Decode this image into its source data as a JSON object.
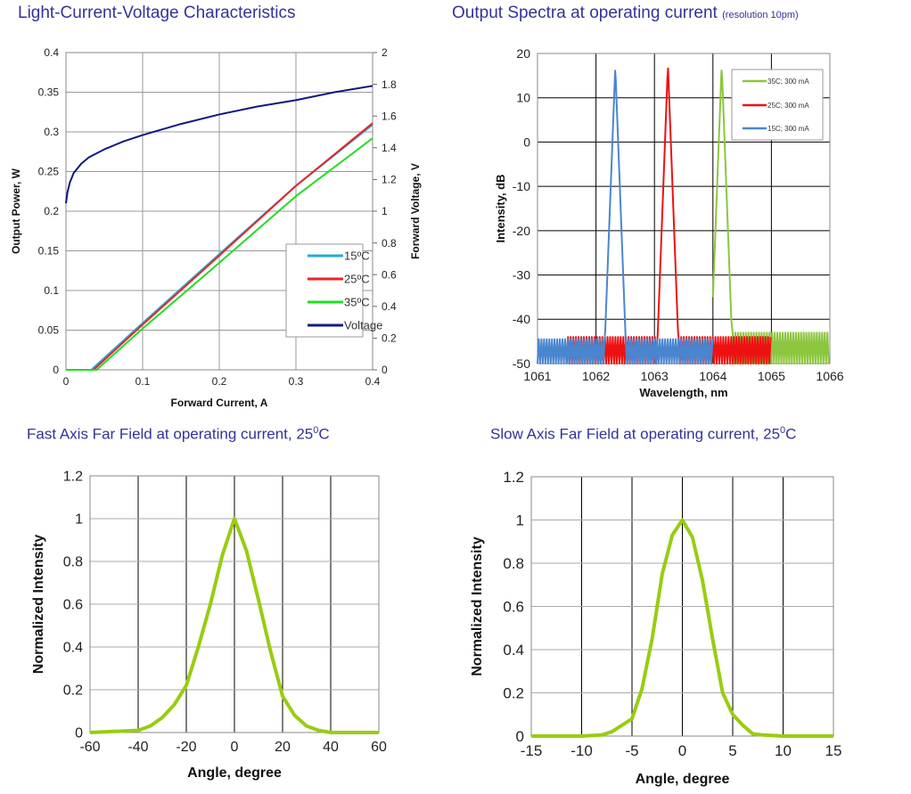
{
  "titles": {
    "liv": "Light-Current-Voltage Characteristics",
    "spectra": "Output Spectra at operating current",
    "spectra_note": "(resolution 10pm)",
    "fast_prefix": "Fast Axis Far Field at operating current, 25",
    "slow_prefix": "Slow Axis Far Field at operating current, 25",
    "deg_sup": "0",
    "unit_c": "C"
  },
  "chart_data": [
    {
      "type": "line",
      "xlabel": "Forward Current, A",
      "ylabel": "Output Power, W",
      "y2label": "Forward Voltage, V",
      "xlim": [
        0,
        0.4
      ],
      "ylim": [
        0,
        0.4
      ],
      "y2lim": [
        0,
        2
      ],
      "xticks": [
        "0",
        "0.1",
        "0.2",
        "0.3",
        "0.4"
      ],
      "yticks": [
        "0",
        "0.05",
        "0.1",
        "0.15",
        "0.2",
        "0.25",
        "0.3",
        "0.35",
        "0.4"
      ],
      "y2ticks": [
        "0",
        "0.2",
        "0.4",
        "0.6",
        "0.8",
        "1",
        "1.2",
        "1.4",
        "1.6",
        "1.8",
        "2"
      ],
      "grid": true,
      "legend": "center-right",
      "series": [
        {
          "name": "15ºC",
          "color": "#22aadd",
          "axis": "left",
          "x": [
            0,
            0.033,
            0.1,
            0.2,
            0.3,
            0.4
          ],
          "y": [
            0,
            0,
            0.059,
            0.146,
            0.232,
            0.309
          ]
        },
        {
          "name": "25ºC",
          "color": "#ee2222",
          "axis": "left",
          "x": [
            0,
            0.036,
            0.1,
            0.2,
            0.3,
            0.4
          ],
          "y": [
            0,
            0,
            0.057,
            0.144,
            0.232,
            0.311
          ]
        },
        {
          "name": "35ºC",
          "color": "#22dd22",
          "axis": "left",
          "x": [
            0,
            0.04,
            0.1,
            0.2,
            0.3,
            0.4
          ],
          "y": [
            0,
            0,
            0.052,
            0.135,
            0.219,
            0.292
          ]
        },
        {
          "name": "Voltage",
          "color": "#101880",
          "axis": "right",
          "x": [
            0,
            0.002,
            0.005,
            0.01,
            0.02,
            0.03,
            0.05,
            0.075,
            0.1,
            0.15,
            0.2,
            0.25,
            0.3,
            0.35,
            0.4
          ],
          "y": [
            1.05,
            1.12,
            1.18,
            1.24,
            1.3,
            1.34,
            1.39,
            1.44,
            1.48,
            1.55,
            1.61,
            1.66,
            1.7,
            1.75,
            1.79
          ]
        }
      ]
    },
    {
      "type": "line",
      "xlabel": "Wavelength, nm",
      "ylabel": "Intensity, dB",
      "xlim": [
        1061,
        1066
      ],
      "ylim": [
        -50,
        20
      ],
      "xticks": [
        "1061",
        "1062",
        "1063",
        "1064",
        "1065",
        "1066"
      ],
      "yticks": [
        "-50",
        "-40",
        "-30",
        "-20",
        "-10",
        "0",
        "10",
        "20"
      ],
      "grid": true,
      "legend": "top-right",
      "series": [
        {
          "name": "35C; 300 mA",
          "color": "#8cc63f",
          "x_range": [
            1064,
            1066
          ],
          "peak_nm": 1064.15,
          "peak_db": 17.5,
          "floor_db": [
            -50,
            -43
          ],
          "fringe_period_nm": 0.045
        },
        {
          "name": "25C; 300 mA",
          "color": "#ee1111",
          "x_range": [
            1061.5,
            1065
          ],
          "peak_nm": 1063.23,
          "peak_db": 17.5,
          "floor_db": [
            -50,
            -44
          ],
          "fringe_period_nm": 0.045
        },
        {
          "name": "15C; 300 mA",
          "color": "#4a86d0",
          "x_range": [
            1061,
            1064
          ],
          "peak_nm": 1062.33,
          "peak_db": 17,
          "floor_db": [
            -50,
            -44.5
          ],
          "fringe_period_nm": 0.045
        }
      ]
    },
    {
      "type": "line",
      "xlabel": "Angle, degree",
      "ylabel": "Normalized Intensity",
      "xlim": [
        -60,
        60
      ],
      "ylim": [
        0,
        1.2
      ],
      "xticks": [
        "-60",
        "-40",
        "-20",
        "0",
        "20",
        "40",
        "60"
      ],
      "yticks": [
        "0",
        "0.2",
        "0.4",
        "0.6",
        "0.8",
        "1",
        "1.2"
      ],
      "grid": true,
      "series": [
        {
          "color": "#99cc11",
          "x": [
            -60,
            -40,
            -35,
            -30,
            -25,
            -20,
            -15,
            -10,
            -5,
            0,
            5,
            10,
            15,
            20,
            25,
            30,
            35,
            40,
            60
          ],
          "y": [
            0,
            0.01,
            0.03,
            0.07,
            0.13,
            0.22,
            0.4,
            0.6,
            0.83,
            1,
            0.85,
            0.62,
            0.38,
            0.17,
            0.08,
            0.03,
            0.01,
            0,
            0
          ]
        }
      ]
    },
    {
      "type": "line",
      "xlabel": "Angle, degree",
      "ylabel": "Normalized Intensity",
      "xlim": [
        -15,
        15
      ],
      "ylim": [
        0,
        1.2
      ],
      "xticks": [
        "-15",
        "-10",
        "-5",
        "0",
        "5",
        "10",
        "15"
      ],
      "yticks": [
        "0",
        "0.2",
        "0.4",
        "0.6",
        "0.8",
        "1",
        "1.2"
      ],
      "grid": true,
      "series": [
        {
          "color": "#99cc11",
          "x": [
            -15,
            -10,
            -8,
            -7,
            -6,
            -5,
            -4,
            -3,
            -2,
            -1,
            0,
            1,
            2,
            3,
            4,
            5,
            6,
            7,
            8,
            10,
            15
          ],
          "y": [
            0,
            0,
            0.005,
            0.02,
            0.05,
            0.08,
            0.22,
            0.45,
            0.75,
            0.93,
            1,
            0.92,
            0.72,
            0.45,
            0.2,
            0.1,
            0.05,
            0.01,
            0.005,
            0,
            0
          ]
        }
      ]
    }
  ]
}
